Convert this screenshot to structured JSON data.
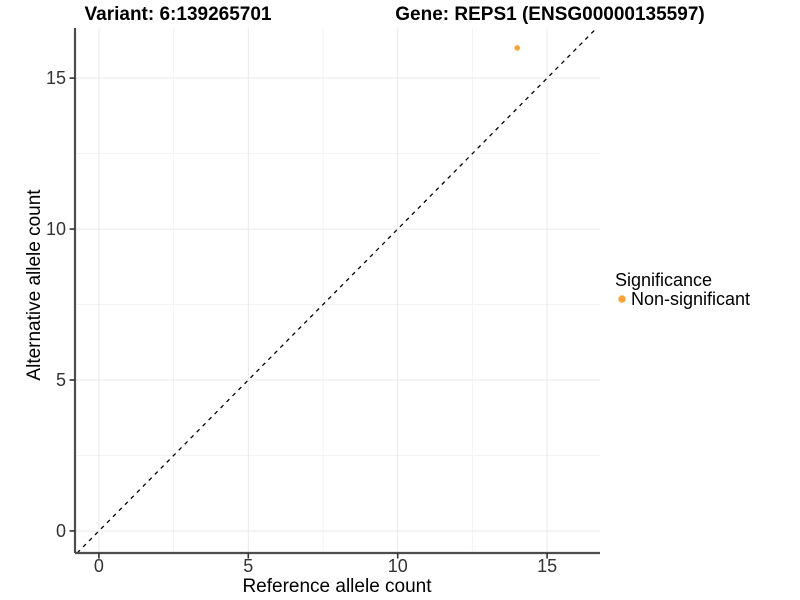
{
  "header": {
    "variant_title": "Variant: 6:139265701",
    "gene_title": "Gene: REPS1 (ENSG00000135597)"
  },
  "chart_data": {
    "type": "scatter",
    "title": "Variant: 6:139265701 / Gene: REPS1 (ENSG00000135597)",
    "xlabel": "Reference allele count",
    "ylabel": "Alternative allele count",
    "xlim": [
      -0.8,
      16.77
    ],
    "ylim": [
      -0.73,
      16.66
    ],
    "xticks": [
      0,
      5,
      10,
      15
    ],
    "yticks": [
      0,
      5,
      10,
      15
    ],
    "xminor": [
      2.5,
      7.5,
      12.5
    ],
    "yminor": [
      2.5,
      7.5,
      12.5
    ],
    "grid": true,
    "series": [
      {
        "name": "Non-significant",
        "color": "#F8A53D",
        "points": [
          {
            "x": 14,
            "y": 16
          }
        ]
      }
    ],
    "reference_line": {
      "type": "identity",
      "equation": "y = x",
      "style": "dashed",
      "color": "#000000"
    },
    "legend": {
      "title": "Significance",
      "position": "right",
      "items": [
        {
          "label": "Non-significant",
          "color": "#F8A53D"
        }
      ]
    }
  },
  "style": {
    "background": "#FFFFFF",
    "axis_color": "#4D4D4D",
    "tick_color": "#333333",
    "grid_major_color": "#E9E9E9",
    "grid_minor_color": "#F3F3F3",
    "point_radius": 2.8,
    "legend_point_radius": 3.7
  }
}
